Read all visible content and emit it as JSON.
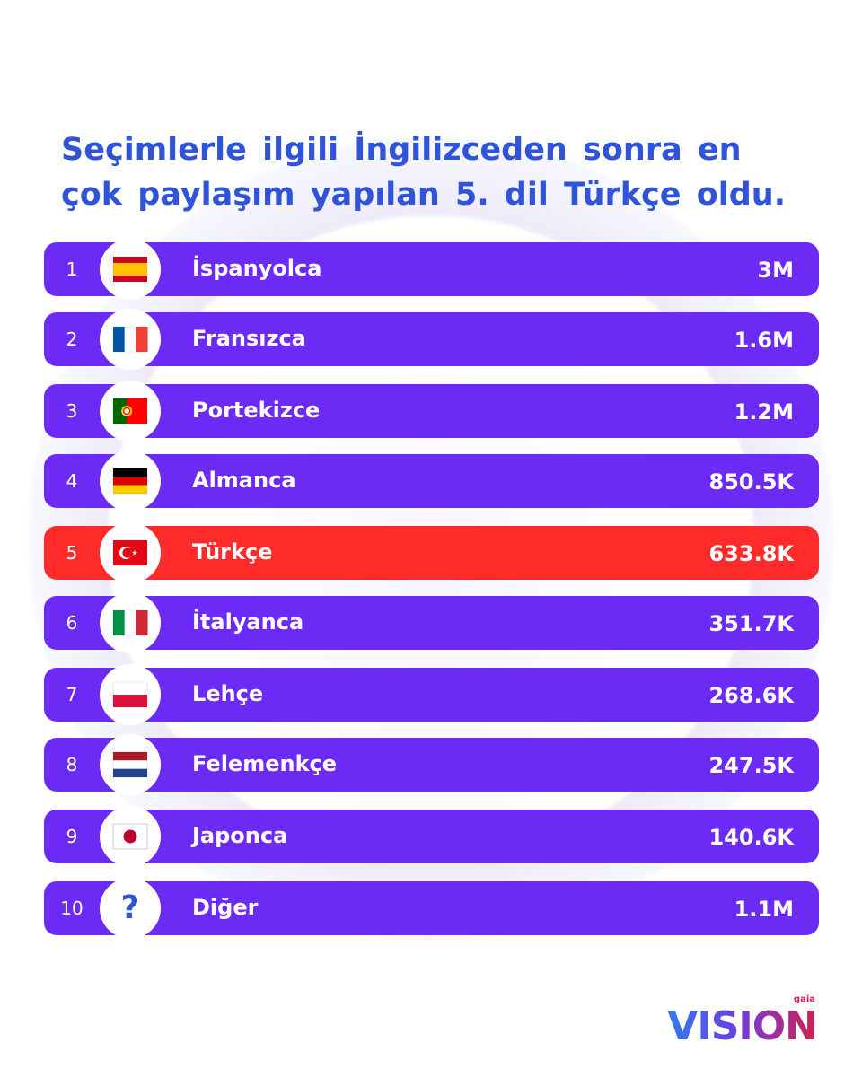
{
  "title": {
    "line1": "Seçimlerle ilgili İngilizceden sonra en",
    "line2": "çok paylaşım yapılan 5. dil Türkçe oldu."
  },
  "colors": {
    "bar": "#6b2bf5",
    "highlight": "#ff2a2a",
    "title": "#2f54d8"
  },
  "chart_data": {
    "type": "table",
    "highlight_rank": 5,
    "rows": [
      {
        "rank": "1",
        "language": "İspanyolca",
        "value": "3M",
        "flag": "spain-flag-icon"
      },
      {
        "rank": "2",
        "language": "Fransızca",
        "value": "1.6M",
        "flag": "france-flag-icon"
      },
      {
        "rank": "3",
        "language": "Portekizce",
        "value": "1.2M",
        "flag": "portugal-flag-icon"
      },
      {
        "rank": "4",
        "language": "Almanca",
        "value": "850.5K",
        "flag": "germany-flag-icon"
      },
      {
        "rank": "5",
        "language": "Türkçe",
        "value": "633.8K",
        "flag": "turkey-flag-icon"
      },
      {
        "rank": "6",
        "language": "İtalyanca",
        "value": "351.7K",
        "flag": "italy-flag-icon"
      },
      {
        "rank": "7",
        "language": "Lehçe",
        "value": "268.6K",
        "flag": "poland-flag-icon"
      },
      {
        "rank": "8",
        "language": "Felemenkçe",
        "value": "247.5K",
        "flag": "netherlands-flag-icon"
      },
      {
        "rank": "9",
        "language": "Japonca",
        "value": "140.6K",
        "flag": "japan-flag-icon"
      },
      {
        "rank": "10",
        "language": "Diğer",
        "value": "1.1M",
        "flag": "question-mark-icon"
      }
    ]
  },
  "logo": {
    "word": "VISION",
    "sub": "gaia"
  }
}
